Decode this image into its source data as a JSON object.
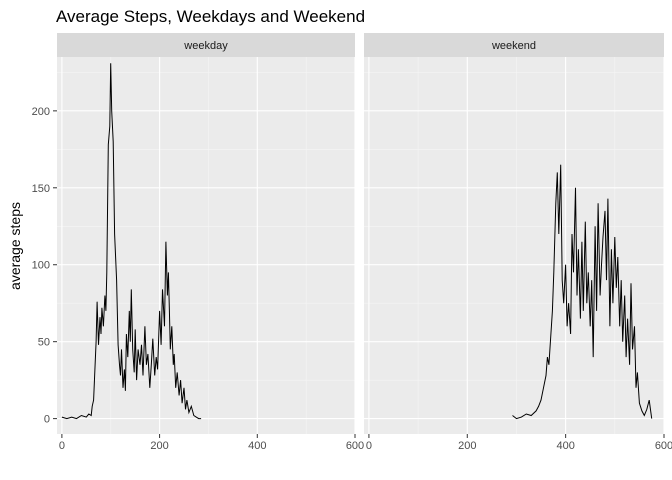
{
  "chart_data": {
    "type": "line",
    "title": "Average Steps, Weekdays and Weekend",
    "xlabel": "",
    "ylabel": "average steps",
    "xlim": [
      -10,
      600
    ],
    "ylim": [
      -10,
      235
    ],
    "x_ticks": [
      "0",
      "200",
      "400",
      "600"
    ],
    "x_tick_values": [
      0,
      200,
      400,
      600
    ],
    "y_ticks": [
      "0",
      "50",
      "100",
      "150",
      "200"
    ],
    "y_tick_values": [
      0,
      50,
      100,
      150,
      200
    ],
    "grid": true,
    "panel_background": "#ebebeb",
    "strip_background": "#d9d9d9",
    "line_color": "#000000",
    "panels": [
      {
        "label": "weekday",
        "x": [
          0,
          10,
          20,
          30,
          40,
          50,
          55,
          60,
          62,
          65,
          68,
          70,
          72,
          75,
          78,
          80,
          82,
          85,
          88,
          90,
          92,
          95,
          98,
          100,
          102,
          105,
          108,
          110,
          112,
          115,
          118,
          120,
          122,
          125,
          128,
          130,
          132,
          135,
          138,
          140,
          142,
          145,
          148,
          150,
          153,
          156,
          160,
          163,
          166,
          170,
          173,
          176,
          180,
          183,
          186,
          190,
          193,
          196,
          200,
          203,
          206,
          210,
          213,
          216,
          218,
          220,
          222,
          225,
          228,
          230,
          233,
          236,
          240,
          243,
          246,
          250,
          253,
          256,
          260,
          265,
          270,
          275,
          280,
          285
        ],
        "values": [
          1,
          0,
          1,
          0,
          2,
          1,
          3,
          2,
          8,
          12,
          35,
          50,
          76,
          48,
          66,
          55,
          72,
          60,
          80,
          70,
          95,
          178,
          190,
          231,
          200,
          180,
          120,
          105,
          90,
          48,
          35,
          28,
          45,
          20,
          32,
          18,
          55,
          40,
          70,
          50,
          84,
          45,
          30,
          58,
          25,
          45,
          35,
          48,
          28,
          60,
          35,
          42,
          20,
          35,
          52,
          28,
          40,
          32,
          70,
          48,
          84,
          60,
          115,
          80,
          95,
          70,
          45,
          60,
          35,
          42,
          20,
          30,
          15,
          25,
          10,
          20,
          6,
          12,
          4,
          8,
          2,
          1,
          0,
          0
        ]
      },
      {
        "label": "weekend",
        "x": [
          292,
          300,
          310,
          320,
          330,
          340,
          345,
          350,
          355,
          360,
          363,
          366,
          370,
          373,
          376,
          380,
          383,
          386,
          390,
          393,
          396,
          400,
          403,
          406,
          410,
          413,
          416,
          420,
          423,
          426,
          430,
          433,
          436,
          440,
          443,
          446,
          450,
          453,
          456,
          460,
          463,
          466,
          470,
          473,
          476,
          480,
          483,
          486,
          490,
          493,
          496,
          500,
          503,
          506,
          510,
          513,
          516,
          520,
          523,
          526,
          530,
          533,
          536,
          540,
          543,
          546,
          550,
          555,
          560,
          565,
          570,
          575
        ],
        "values": [
          2,
          0,
          1,
          3,
          2,
          5,
          8,
          12,
          20,
          28,
          40,
          35,
          55,
          70,
          95,
          140,
          160,
          120,
          165,
          90,
          75,
          100,
          60,
          75,
          55,
          120,
          95,
          150,
          80,
          110,
          65,
          115,
          70,
          128,
          75,
          95,
          60,
          90,
          40,
          125,
          70,
          140,
          80,
          100,
          118,
          135,
          90,
          143,
          60,
          110,
          75,
          118,
          85,
          105,
          60,
          90,
          50,
          80,
          40,
          65,
          35,
          88,
          45,
          60,
          20,
          30,
          10,
          5,
          2,
          6,
          12,
          0
        ]
      }
    ]
  }
}
